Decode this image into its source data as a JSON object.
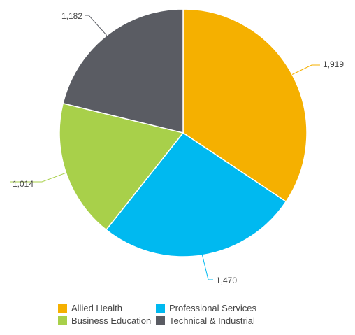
{
  "chart_data": {
    "type": "pie",
    "title": "",
    "slices": [
      {
        "label": "Allied Health",
        "value": 1919,
        "display": "1,919",
        "color": "#F5B000"
      },
      {
        "label": "Professional Services",
        "value": 1470,
        "display": "1,470",
        "color": "#00B9F0"
      },
      {
        "label": "Business Education",
        "value": 1014,
        "display": "1,014",
        "color": "#A8D04A"
      },
      {
        "label": "Technical & Industrial",
        "value": 1182,
        "display": "1,182",
        "color": "#5A5C63"
      }
    ],
    "start_angle": "12 o'clock",
    "direction": "clockwise",
    "legend_position": "bottom"
  },
  "legend": {
    "items": [
      {
        "label": "Allied Health",
        "color": "#F5B000"
      },
      {
        "label": "Professional Services",
        "color": "#00B9F0"
      },
      {
        "label": "Business Education",
        "color": "#A8D04A"
      },
      {
        "label": "Technical & Industrial",
        "color": "#5A5C63"
      }
    ]
  }
}
